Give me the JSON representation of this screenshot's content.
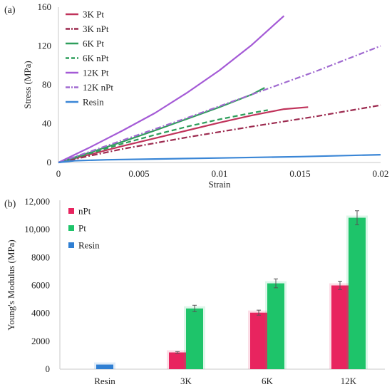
{
  "chart_data": [
    {
      "type": "line",
      "panel_label": "(a)",
      "xlabel": "Strain",
      "ylabel": "Stress (MPa)",
      "xlim": [
        0,
        0.02
      ],
      "ylim": [
        0,
        160
      ],
      "x_ticks": [
        "0",
        "0.005",
        "0.01",
        "0.015",
        "0.02"
      ],
      "x_tick_values": [
        0,
        0.005,
        0.01,
        0.015,
        0.02
      ],
      "y_ticks": [
        "0",
        "40",
        "80",
        "120",
        "160"
      ],
      "y_tick_values": [
        0,
        40,
        80,
        120,
        160
      ],
      "legend_position": "top-left",
      "grid": false,
      "series": [
        {
          "name": "3K Pt",
          "color": "#c0335b",
          "dash": "solid",
          "points": [
            [
              0,
              0
            ],
            [
              0.002,
              8.5
            ],
            [
              0.004,
              17
            ],
            [
              0.006,
              25
            ],
            [
              0.008,
              33
            ],
            [
              0.01,
              41
            ],
            [
              0.012,
              48.5
            ],
            [
              0.014,
              55
            ],
            [
              0.0155,
              57
            ]
          ]
        },
        {
          "name": "3K nPt",
          "color": "#9c2a4f",
          "dash": "dashdot",
          "points": [
            [
              0,
              0
            ],
            [
              0.004,
              14
            ],
            [
              0.008,
              26
            ],
            [
              0.012,
              37
            ],
            [
              0.016,
              47.5
            ],
            [
              0.02,
              59
            ]
          ]
        },
        {
          "name": "6K Pt",
          "color": "#2e9e5b",
          "dash": "solid",
          "points": [
            [
              0,
              0
            ],
            [
              0.002,
              10.5
            ],
            [
              0.004,
              21.5
            ],
            [
              0.006,
              33
            ],
            [
              0.008,
              45
            ],
            [
              0.01,
              57
            ],
            [
              0.012,
              70
            ],
            [
              0.0128,
              77
            ]
          ]
        },
        {
          "name": "6K nPt",
          "color": "#2e9e5b",
          "dash": "dash",
          "points": [
            [
              0,
              0
            ],
            [
              0.002,
              9.5
            ],
            [
              0.004,
              19.5
            ],
            [
              0.006,
              28.5
            ],
            [
              0.008,
              37
            ],
            [
              0.01,
              44.5
            ],
            [
              0.012,
              51
            ],
            [
              0.013,
              54
            ]
          ]
        },
        {
          "name": "12K Pt",
          "color": "#a45ad6",
          "dash": "solid",
          "points": [
            [
              0,
              0
            ],
            [
              0.002,
              16
            ],
            [
              0.004,
              33
            ],
            [
              0.006,
              51
            ],
            [
              0.008,
              72
            ],
            [
              0.01,
              95
            ],
            [
              0.012,
              121
            ],
            [
              0.014,
              151
            ]
          ]
        },
        {
          "name": "12K nPt",
          "color": "#a06ad0",
          "dash": "dashdot",
          "points": [
            [
              0,
              0
            ],
            [
              0.004,
              23
            ],
            [
              0.008,
              46
            ],
            [
              0.012,
              70
            ],
            [
              0.016,
              94
            ],
            [
              0.02,
              120
            ]
          ]
        },
        {
          "name": "Resin",
          "color": "#3a86d6",
          "dash": "solid",
          "points": [
            [
              0,
              0
            ],
            [
              0.001,
              1.8
            ],
            [
              0.003,
              2.8
            ],
            [
              0.006,
              3.6
            ],
            [
              0.01,
              4.6
            ],
            [
              0.015,
              6
            ],
            [
              0.02,
              8
            ]
          ]
        }
      ]
    },
    {
      "type": "bar",
      "panel_label": "(b)",
      "ylabel": "Young's Modulus (MPa)",
      "ylim": [
        0,
        12000
      ],
      "y_ticks": [
        "0",
        "2000",
        "4000",
        "6000",
        "8000",
        "10,000",
        "12,000"
      ],
      "y_tick_values": [
        0,
        2000,
        4000,
        6000,
        8000,
        10000,
        12000
      ],
      "categories": [
        "Resin",
        "3K",
        "6K",
        "12K"
      ],
      "legend_position": "top-left",
      "grid": false,
      "series": [
        {
          "name": "nPt",
          "color": "#e8245f",
          "values": [
            null,
            1200,
            4050,
            6000
          ],
          "errors": [
            null,
            60,
            180,
            300
          ]
        },
        {
          "name": "Pt",
          "color": "#1ec46a",
          "values": [
            null,
            4350,
            6150,
            10850
          ],
          "errors": [
            null,
            230,
            320,
            500
          ]
        },
        {
          "name": "Resin",
          "color": "#2f7fd3",
          "values": [
            330,
            null,
            null,
            null
          ],
          "errors": [
            null,
            null,
            null,
            null
          ]
        }
      ]
    }
  ]
}
